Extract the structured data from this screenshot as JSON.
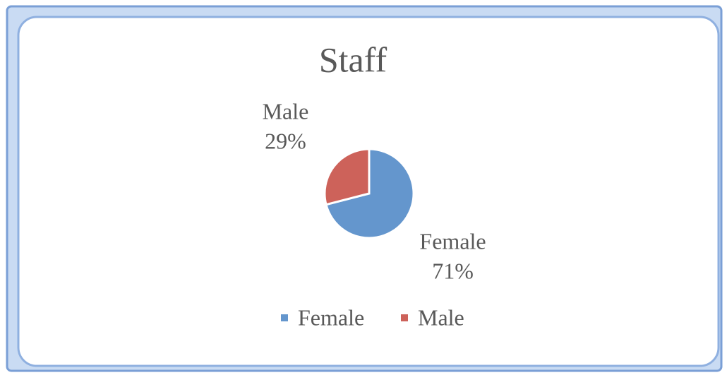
{
  "chart_data": {
    "type": "pie",
    "title": "Staff",
    "categories": [
      "Female",
      "Male"
    ],
    "values": [
      71,
      29
    ],
    "value_labels": [
      "71%",
      "29%"
    ],
    "colors": [
      "#6496cd",
      "#cd625a"
    ],
    "legend": "bottom"
  }
}
